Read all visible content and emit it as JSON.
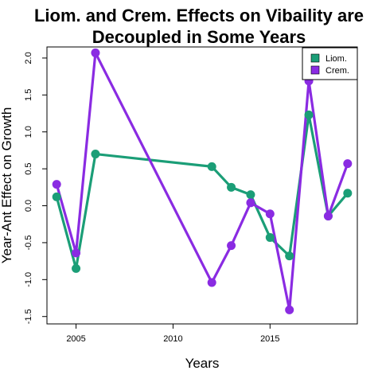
{
  "chart_data": {
    "type": "line",
    "title_line1": "Liom. and Crem. Effects on Vibaility are",
    "title_line2": "Decoupled in Some Years",
    "xlabel": "Years",
    "ylabel": "Year-Ant Effect on Growth",
    "xlim": [
      2003.5,
      2019.5
    ],
    "ylim": [
      -1.6,
      2.15
    ],
    "x_ticks": [
      2005,
      2010,
      2015
    ],
    "y_ticks": [
      -1.5,
      -1.0,
      -0.5,
      0.0,
      0.5,
      1.0,
      1.5,
      2.0
    ],
    "y_tick_labels": [
      "-1.5",
      "-1.0",
      "-0.5",
      "0.0",
      "0.5",
      "1.0",
      "1.5",
      "2.0"
    ],
    "legend_position": "top-right",
    "series": [
      {
        "name": "Liom.",
        "color": "#1b9e77",
        "x": [
          2004,
          2005,
          2006,
          2012,
          2013,
          2014,
          2015,
          2016,
          2017,
          2018,
          2019
        ],
        "y": [
          0.12,
          -0.85,
          0.7,
          0.53,
          0.25,
          0.15,
          -0.43,
          -0.68,
          1.23,
          -0.14,
          0.17
        ]
      },
      {
        "name": "Crem.",
        "color": "#8a2be2",
        "x": [
          2004,
          2005,
          2006,
          2012,
          2013,
          2014,
          2015,
          2016,
          2017,
          2018,
          2019
        ],
        "y": [
          0.29,
          -0.64,
          2.07,
          -1.04,
          -0.54,
          0.04,
          -0.11,
          -1.41,
          1.69,
          -0.14,
          0.57
        ]
      }
    ]
  }
}
